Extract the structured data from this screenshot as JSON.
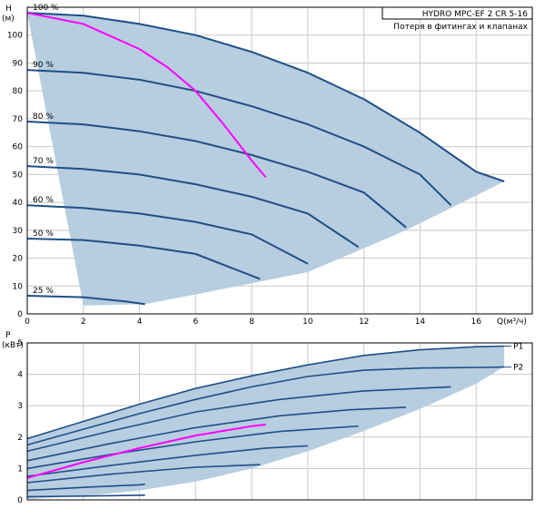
{
  "title_box": {
    "line1": "HYDRO MPC-EF 2 CR 5-16",
    "line2": "Потеря в фитингах и клапанах"
  },
  "colors": {
    "fill": "#b7cde0",
    "curve": "#1e4f86",
    "grid": "#c9c9c9",
    "system": "#ff00ff",
    "axis": "#000000"
  },
  "chart_data": [
    {
      "type": "line",
      "name": "head",
      "xlabel": "Q(м³/ч)",
      "ylabel_line1": "H",
      "ylabel_line2": "(м)",
      "xlim": [
        0,
        18
      ],
      "ylim": [
        0,
        110
      ],
      "xticks": [
        0,
        2,
        4,
        6,
        8,
        10,
        12,
        14,
        16
      ],
      "yticks": [
        0,
        10,
        20,
        30,
        40,
        50,
        60,
        70,
        80,
        90,
        100
      ],
      "region_upper": [
        [
          0,
          108
        ],
        [
          2,
          107
        ],
        [
          4,
          104
        ],
        [
          6,
          100
        ],
        [
          8,
          94
        ],
        [
          10,
          86.5
        ],
        [
          12,
          77
        ],
        [
          14,
          65
        ],
        [
          16,
          51
        ],
        [
          17,
          47.5
        ]
      ],
      "region_lower": [
        [
          17,
          47.5
        ],
        [
          13.5,
          30
        ],
        [
          10,
          15
        ],
        [
          8,
          11
        ],
        [
          6,
          7
        ],
        [
          4.2,
          3.5
        ],
        [
          2,
          3
        ]
      ],
      "series": [
        {
          "label": "100 %",
          "points": [
            [
              0,
              108
            ],
            [
              2,
              107
            ],
            [
              4,
              104
            ],
            [
              6,
              100
            ],
            [
              8,
              94
            ],
            [
              10,
              86.5
            ],
            [
              12,
              77
            ],
            [
              14,
              65
            ],
            [
              16,
              51
            ],
            [
              17,
              47.5
            ]
          ]
        },
        {
          "label": "90 %",
          "points": [
            [
              0,
              87.5
            ],
            [
              2,
              86.5
            ],
            [
              4,
              84
            ],
            [
              6,
              80
            ],
            [
              8,
              74.5
            ],
            [
              10,
              68
            ],
            [
              12,
              60
            ],
            [
              14,
              50
            ],
            [
              15.1,
              39
            ]
          ]
        },
        {
          "label": "80 %",
          "points": [
            [
              0,
              69
            ],
            [
              2,
              68
            ],
            [
              4,
              65.5
            ],
            [
              6,
              62
            ],
            [
              8,
              57
            ],
            [
              10,
              51
            ],
            [
              12,
              43.5
            ],
            [
              13.5,
              31
            ]
          ]
        },
        {
          "label": "70 %",
          "points": [
            [
              0,
              53
            ],
            [
              2,
              52
            ],
            [
              4,
              50
            ],
            [
              6,
              46.5
            ],
            [
              8,
              42
            ],
            [
              10,
              36
            ],
            [
              11.8,
              24
            ]
          ]
        },
        {
          "label": "60 %",
          "points": [
            [
              0,
              39
            ],
            [
              2,
              38
            ],
            [
              4,
              36
            ],
            [
              6,
              33
            ],
            [
              8,
              28.5
            ],
            [
              10,
              18
            ]
          ]
        },
        {
          "label": "50 %",
          "points": [
            [
              0,
              27
            ],
            [
              2,
              26.5
            ],
            [
              4,
              24.5
            ],
            [
              6,
              21.5
            ],
            [
              8.3,
              12.5
            ]
          ]
        },
        {
          "label": "25 %",
          "points": [
            [
              0,
              6.5
            ],
            [
              2,
              6
            ],
            [
              3.5,
              4.5
            ],
            [
              4.2,
              3.5
            ]
          ]
        }
      ],
      "system_curve": [
        [
          0,
          108
        ],
        [
          2,
          104
        ],
        [
          4,
          95
        ],
        [
          5,
          88.5
        ],
        [
          6,
          80
        ],
        [
          7,
          68
        ],
        [
          8,
          55
        ],
        [
          8.5,
          49
        ]
      ]
    },
    {
      "type": "line",
      "name": "power",
      "ylabel_line1": "P",
      "ylabel_line2": "(кВт)",
      "xlim": [
        0,
        18
      ],
      "ylim": [
        0,
        5
      ],
      "yticks": [
        0,
        1,
        2,
        3,
        4,
        5
      ],
      "region_upper": [
        [
          0,
          1.95
        ],
        [
          2,
          2.5
        ],
        [
          4,
          3.05
        ],
        [
          6,
          3.55
        ],
        [
          8,
          3.95
        ],
        [
          10,
          4.3
        ],
        [
          12,
          4.6
        ],
        [
          14,
          4.78
        ],
        [
          16,
          4.88
        ],
        [
          17,
          4.9
        ]
      ],
      "region_lower": [
        [
          17,
          4.25
        ],
        [
          16,
          3.7
        ],
        [
          14,
          2.9
        ],
        [
          12,
          2.2
        ],
        [
          10,
          1.55
        ],
        [
          8,
          1.0
        ],
        [
          6,
          0.58
        ],
        [
          4,
          0.3
        ],
        [
          2,
          0.12
        ],
        [
          0,
          0.03
        ]
      ],
      "named_series": [
        {
          "label": "P1",
          "points": [
            [
              0,
              1.95
            ],
            [
              2,
              2.5
            ],
            [
              4,
              3.05
            ],
            [
              6,
              3.55
            ],
            [
              8,
              3.95
            ],
            [
              10,
              4.3
            ],
            [
              12,
              4.6
            ],
            [
              14,
              4.78
            ],
            [
              16,
              4.88
            ],
            [
              17,
              4.9
            ]
          ]
        },
        {
          "label": "P2",
          "points": [
            [
              0,
              1.75
            ],
            [
              2,
              2.25
            ],
            [
              4,
              2.75
            ],
            [
              6,
              3.2
            ],
            [
              8,
              3.6
            ],
            [
              10,
              3.93
            ],
            [
              12,
              4.13
            ],
            [
              14,
              4.2
            ],
            [
              16,
              4.22
            ],
            [
              17,
              4.23
            ]
          ]
        }
      ],
      "family": [
        [
          [
            0,
            1.55
          ],
          [
            3,
            2.2
          ],
          [
            6,
            2.8
          ],
          [
            9,
            3.2
          ],
          [
            12,
            3.47
          ],
          [
            15.1,
            3.6
          ]
        ],
        [
          [
            0,
            1.25
          ],
          [
            3,
            1.8
          ],
          [
            6,
            2.3
          ],
          [
            9,
            2.68
          ],
          [
            11.5,
            2.87
          ],
          [
            13.5,
            2.95
          ]
        ],
        [
          [
            0,
            1.0
          ],
          [
            3,
            1.45
          ],
          [
            6,
            1.85
          ],
          [
            9,
            2.18
          ],
          [
            11.8,
            2.35
          ]
        ],
        [
          [
            0,
            0.75
          ],
          [
            3,
            1.1
          ],
          [
            6,
            1.42
          ],
          [
            8.5,
            1.65
          ],
          [
            10,
            1.72
          ]
        ],
        [
          [
            0,
            0.55
          ],
          [
            3,
            0.82
          ],
          [
            6,
            1.04
          ],
          [
            8.3,
            1.12
          ]
        ],
        [
          [
            0,
            0.3
          ],
          [
            2,
            0.4
          ],
          [
            4,
            0.48
          ],
          [
            4.2,
            0.5
          ]
        ],
        [
          [
            0,
            0.1
          ],
          [
            2,
            0.12
          ],
          [
            4.2,
            0.15
          ]
        ]
      ],
      "system_curve": [
        [
          0,
          0.7
        ],
        [
          2,
          1.2
        ],
        [
          4,
          1.65
        ],
        [
          6,
          2.05
        ],
        [
          7,
          2.2
        ],
        [
          8,
          2.35
        ],
        [
          8.5,
          2.4
        ]
      ]
    }
  ]
}
